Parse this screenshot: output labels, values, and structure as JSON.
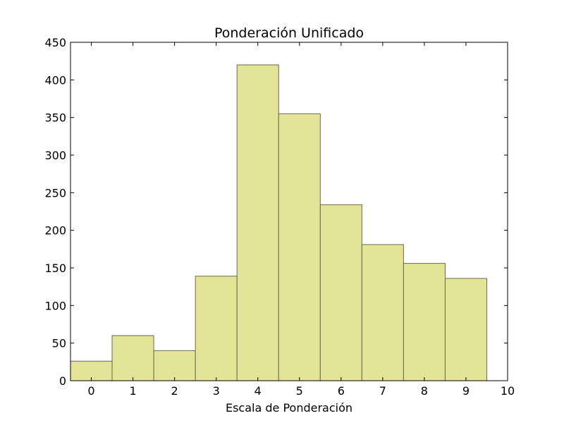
{
  "chart_data": {
    "type": "bar",
    "title": "Ponderación Unificado",
    "xlabel": "Escala de Ponderación",
    "ylabel": "",
    "categories": [
      "0",
      "1",
      "2",
      "3",
      "4",
      "5",
      "6",
      "7",
      "8",
      "9"
    ],
    "values": [
      26,
      60,
      40,
      139,
      420,
      355,
      234,
      181,
      156,
      136
    ],
    "bar_start": -0.5,
    "bar_width": 1,
    "xlim": [
      -0.5,
      10
    ],
    "ylim": [
      0,
      450
    ],
    "xticks": [
      0,
      1,
      2,
      3,
      4,
      5,
      6,
      7,
      8,
      9,
      10
    ],
    "yticks": [
      0,
      50,
      100,
      150,
      200,
      250,
      300,
      350,
      400,
      450
    ],
    "bar_color": "#e3e497",
    "bar_edge_color": "#6b6b48",
    "grid": false,
    "legend": "none"
  }
}
